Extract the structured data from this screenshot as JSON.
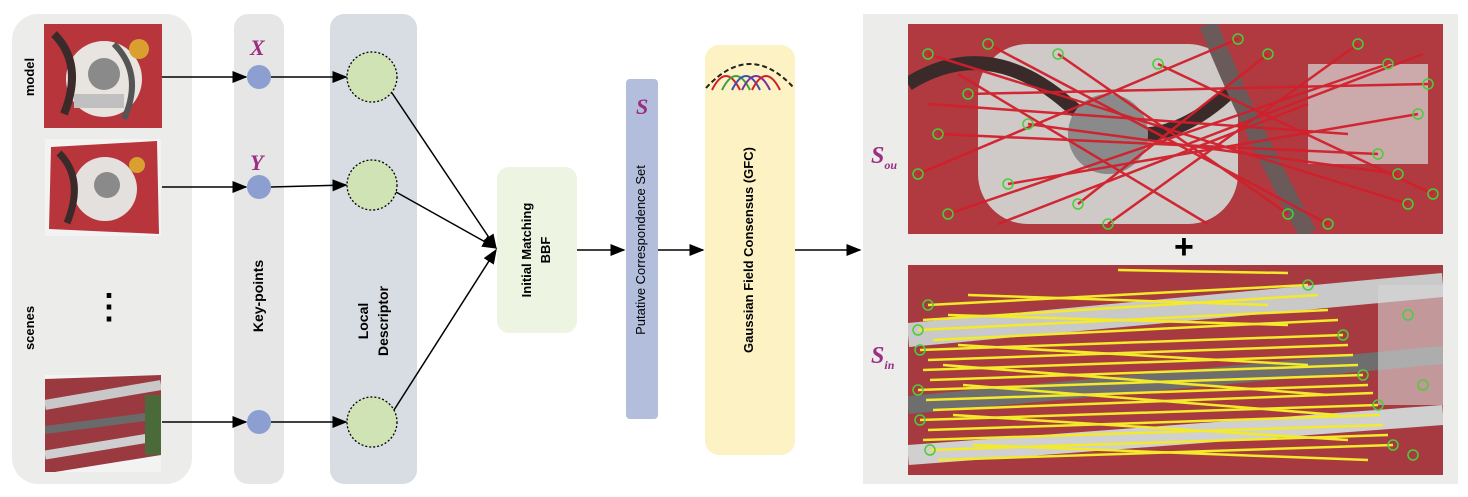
{
  "left": {
    "side_label_top": "model",
    "side_label_bottom": "scenes",
    "ellipsis": "⋮"
  },
  "keypoints": {
    "title": "Key-points",
    "var_x": "X",
    "var_y": "Y"
  },
  "descriptor": {
    "title_line1": "Local",
    "title_line2": "Descriptor"
  },
  "matching": {
    "line1": "Initial Matching",
    "line2": "BBF"
  },
  "putative": {
    "var": "S",
    "title": "Putative Correspondence Set"
  },
  "gfc": {
    "title": "Gaussian Field Consensus (GFC)"
  },
  "results": {
    "outlier_label": "S",
    "outlier_sub": "ou",
    "inlier_label": "S",
    "inlier_sub": "in",
    "plus": "+"
  },
  "colors": {
    "kp_node": "#8c9fd0",
    "desc_node": "#cfe3b5",
    "putative_bar": "#b3bedc",
    "gfc_bar": "#fcf2c4",
    "matching_box": "#eef4e2",
    "math": "#9b2d82",
    "outlier_line": "#d11f2b",
    "inlier_line": "#f2ea2a"
  }
}
